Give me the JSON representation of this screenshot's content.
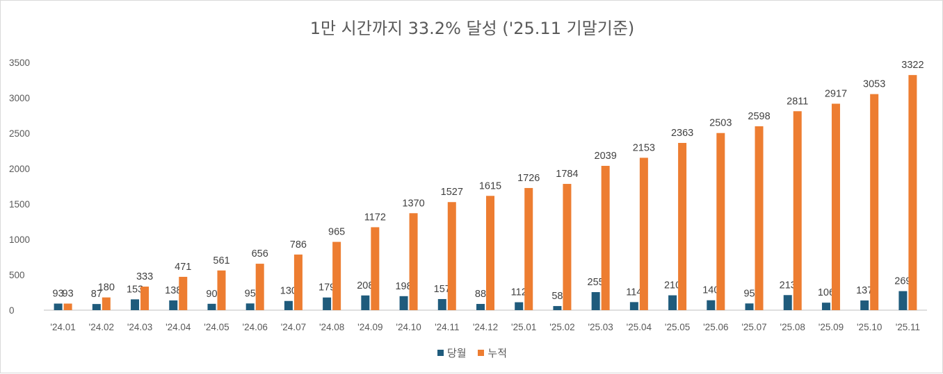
{
  "colors": {
    "monthly": "#1f5b7c",
    "cumulative": "#ed7d31",
    "grid": "#d9d9d9",
    "axis": "#bfbfbf"
  },
  "chart_data": {
    "type": "bar",
    "title": "1만 시간까지 33.2% 달성 ('25.11 기말기준)",
    "xlabel": "",
    "ylabel": "",
    "ylim": [
      0,
      3500
    ],
    "yticks": [
      "0",
      "500",
      "1000",
      "1500",
      "2000",
      "2500",
      "3000",
      "3500"
    ],
    "grid": false,
    "legend_position": "bottom",
    "categories": [
      "'24.01",
      "'24.02",
      "'24.03",
      "'24.04",
      "'24.05",
      "'24.06",
      "'24.07",
      "'24.08",
      "'24.09",
      "'24.10",
      "'24.11",
      "'24.12",
      "'25.01",
      "'25.02",
      "'25.03",
      "'25.04",
      "'25.05",
      "'25.06",
      "'25.07",
      "'25.08",
      "'25.09",
      "'25.10",
      "'25.11"
    ],
    "series": [
      {
        "name": "당월",
        "values": [
          93,
          87,
          153,
          138,
          90,
          95,
          130,
          179,
          208,
          198,
          157,
          88,
          112,
          58,
          255,
          114,
          210,
          140,
          95,
          213,
          106,
          137,
          269
        ]
      },
      {
        "name": "누적",
        "values": [
          93,
          180,
          333,
          471,
          561,
          656,
          786,
          965,
          1172,
          1370,
          1527,
          1615,
          1726,
          1784,
          2039,
          2153,
          2363,
          2503,
          2598,
          2811,
          2917,
          3053,
          3322
        ]
      }
    ]
  }
}
